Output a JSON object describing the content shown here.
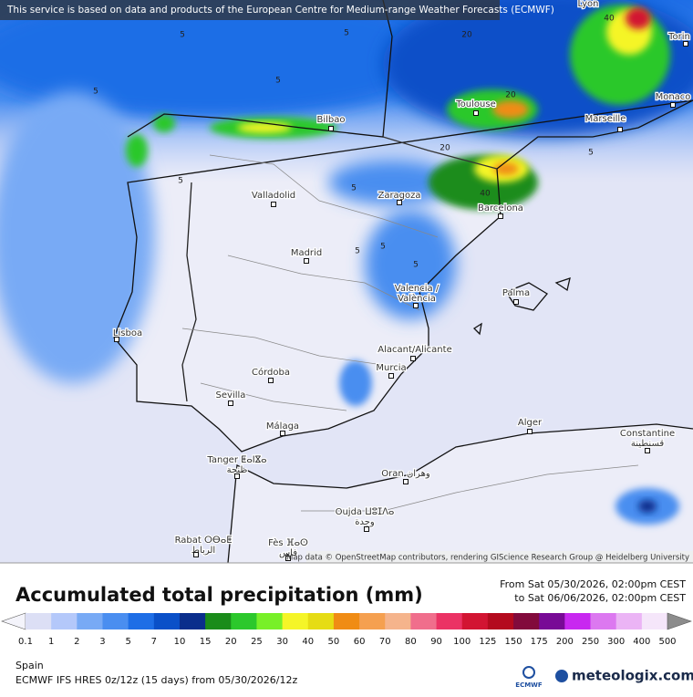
{
  "banner": "This service is based on data and products of the European Centre for Medium-range Weather Forecasts (ECMWF)",
  "cities": [
    {
      "name": "Lyon"
    },
    {
      "name": "Torin"
    },
    {
      "name": "Monaco"
    },
    {
      "name": "Marseille"
    },
    {
      "name": "Toulouse"
    },
    {
      "name": "Bilbao"
    },
    {
      "name": "Valladolid"
    },
    {
      "name": "Zaragoza"
    },
    {
      "name": "Barcelona"
    },
    {
      "name": "Madrid"
    },
    {
      "name": "Valencia /",
      "name2": "València"
    },
    {
      "name": "Palma"
    },
    {
      "name": "Lisboa"
    },
    {
      "name": "Alacant/Alicante"
    },
    {
      "name": "Murcia"
    },
    {
      "name": "Córdoba"
    },
    {
      "name": "Sevilla"
    },
    {
      "name": "Málaga"
    },
    {
      "name": "Alger"
    },
    {
      "name": "Constantine",
      "name2": "قسنطينة"
    },
    {
      "name": "Tanger ⵟⴰⵏⴵⴰ",
      "name2": "طنجة"
    },
    {
      "name": "Oran وهران"
    },
    {
      "name": "Oujda ⵡⵓⵊⴷⴰ",
      "name2": "وجدة"
    },
    {
      "name": "Rabat ⵔⴱⴰⵟ",
      "name2": "الرباط"
    },
    {
      "name": "Fès ⴼⴰⵙ",
      "name2": "فاس"
    }
  ],
  "contours": [
    "5",
    "5",
    "5",
    "5",
    "5",
    "5",
    "5",
    "5",
    "5",
    "5",
    "20",
    "20",
    "20",
    "40",
    "40"
  ],
  "attribution": "Map data © OpenStreetMap contributors, rendering GIScience Research Group @ Heidelberg University",
  "title": "Accumulated total precipitation (mm)",
  "period": {
    "from": "From Sat 05/30/2026, 02:00pm CEST",
    "to": "to Sat 06/06/2026, 02:00pm CEST"
  },
  "legend": {
    "bounds": [
      0.1,
      1,
      2,
      3,
      5,
      7,
      10,
      15,
      20,
      25,
      30,
      40,
      50,
      60,
      70,
      80,
      90,
      100,
      125,
      150,
      175,
      200,
      250,
      300,
      400,
      500
    ],
    "colors": [
      "#f4f4fb",
      "#dcdff5",
      "#b4c8fa",
      "#78aaf5",
      "#4a8ef0",
      "#1e6ee6",
      "#0a50c8",
      "#0a2e8c",
      "#1a8c1a",
      "#2cc82c",
      "#78f028",
      "#f5f528",
      "#e6dc14",
      "#f08c14",
      "#f5a050",
      "#f5b48c",
      "#f06e8c",
      "#eb3264",
      "#d21432",
      "#b40a1e",
      "#820a3c",
      "#780a96",
      "#c828f0",
      "#dc78f0",
      "#ebb4f5",
      "#f5e6fa",
      "#dcdcdc",
      "#8c8c8c"
    ]
  },
  "region": "Spain",
  "model": "ECMWF IFS HRES 0z/12z (15 days) from 05/30/2026/12z",
  "logos": {
    "ecmwf": "ECMWF",
    "site": "meteologix.com"
  }
}
